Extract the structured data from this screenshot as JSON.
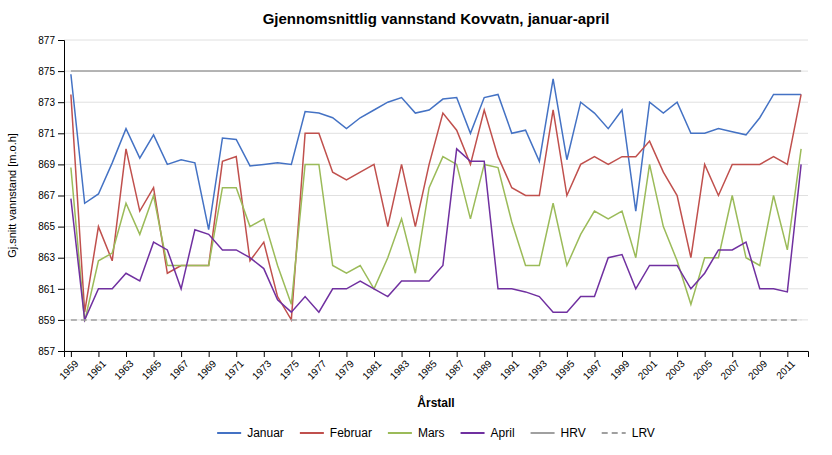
{
  "chart_data": {
    "type": "line",
    "title": "Gjennomsnittlig vannstand Kovvatn, januar-april",
    "xlabel": "Årstall",
    "ylabel": "Gj.snitt vannstand [m.o.h]",
    "x": [
      1959,
      1960,
      1961,
      1962,
      1963,
      1964,
      1965,
      1966,
      1967,
      1968,
      1969,
      1970,
      1971,
      1972,
      1973,
      1974,
      1975,
      1976,
      1977,
      1978,
      1979,
      1980,
      1981,
      1982,
      1983,
      1984,
      1985,
      1986,
      1987,
      1988,
      1989,
      1990,
      1991,
      1992,
      1993,
      1994,
      1995,
      1996,
      1997,
      1998,
      1999,
      2000,
      2001,
      2002,
      2003,
      2004,
      2005,
      2006,
      2007,
      2008,
      2009,
      2010,
      2011,
      2012
    ],
    "series": [
      {
        "name": "Januar",
        "color": "#4472C4",
        "line_style": "solid",
        "values": [
          874.8,
          866.5,
          867.1,
          869.1,
          871.3,
          869.4,
          870.9,
          869.0,
          869.3,
          869.1,
          864.8,
          870.7,
          870.6,
          868.9,
          869.0,
          869.1,
          869.0,
          872.4,
          872.3,
          872.0,
          871.3,
          872.0,
          872.5,
          873.0,
          873.3,
          872.3,
          872.5,
          873.2,
          873.3,
          871.0,
          873.3,
          873.5,
          871.0,
          871.2,
          869.2,
          874.5,
          869.3,
          873.0,
          872.3,
          871.3,
          872.5,
          866.0,
          873.0,
          872.3,
          873.0,
          871.0,
          871.0,
          871.3,
          871.1,
          870.9,
          872.0,
          873.5,
          873.5,
          873.5
        ]
      },
      {
        "name": "Februar",
        "color": "#C0504D",
        "line_style": "solid",
        "values": [
          873.5,
          859.5,
          865.0,
          862.8,
          870.0,
          866.0,
          867.5,
          862.0,
          862.5,
          862.5,
          862.5,
          869.2,
          869.5,
          862.8,
          864.0,
          860.5,
          859.0,
          871.0,
          871.0,
          868.5,
          868.0,
          868.5,
          869.0,
          865.0,
          869.0,
          865.0,
          869.0,
          872.3,
          871.2,
          869.0,
          872.5,
          869.5,
          867.5,
          867.0,
          867.0,
          872.5,
          867.0,
          869.0,
          869.5,
          869.0,
          869.5,
          869.5,
          870.5,
          868.5,
          867.0,
          863.0,
          869.0,
          867.0,
          869.0,
          869.0,
          869.0,
          869.5,
          869.0,
          873.5
        ]
      },
      {
        "name": "Mars",
        "color": "#9BBB59",
        "line_style": "solid",
        "values": [
          868.8,
          858.9,
          862.8,
          863.3,
          866.5,
          864.5,
          867.0,
          862.5,
          862.5,
          862.5,
          862.5,
          867.5,
          867.5,
          865.0,
          865.5,
          862.5,
          860.0,
          869.0,
          869.0,
          862.5,
          862.0,
          862.5,
          861.0,
          863.0,
          865.5,
          862.0,
          867.5,
          869.5,
          869.0,
          865.5,
          869.0,
          868.8,
          865.3,
          862.5,
          862.5,
          866.5,
          862.5,
          864.5,
          866.0,
          865.5,
          866.0,
          863.0,
          869.0,
          865.0,
          862.8,
          860.0,
          863.0,
          863.0,
          867.0,
          863.0,
          862.5,
          867.0,
          863.5,
          870.0
        ]
      },
      {
        "name": "April",
        "color": "#7030A0",
        "line_style": "solid",
        "values": [
          866.8,
          859.0,
          861.0,
          861.0,
          862.0,
          861.5,
          864.0,
          863.5,
          861.0,
          864.8,
          864.5,
          863.5,
          863.5,
          863.0,
          862.3,
          860.3,
          859.5,
          860.5,
          859.5,
          861.0,
          861.0,
          861.5,
          861.0,
          860.5,
          861.5,
          861.5,
          861.5,
          862.5,
          870.0,
          869.2,
          869.2,
          861.0,
          861.0,
          860.8,
          860.5,
          859.5,
          859.5,
          860.5,
          860.5,
          863.0,
          863.2,
          861.0,
          862.5,
          862.5,
          862.5,
          861.0,
          862.0,
          863.5,
          863.5,
          864.0,
          861.0,
          861.0,
          860.8,
          869.0
        ]
      },
      {
        "name": "HRV",
        "color": "#A0A0A0",
        "line_style": "solid",
        "values": [
          875,
          875,
          875,
          875,
          875,
          875,
          875,
          875,
          875,
          875,
          875,
          875,
          875,
          875,
          875,
          875,
          875,
          875,
          875,
          875,
          875,
          875,
          875,
          875,
          875,
          875,
          875,
          875,
          875,
          875,
          875,
          875,
          875,
          875,
          875,
          875,
          875,
          875,
          875,
          875,
          875,
          875,
          875,
          875,
          875,
          875,
          875,
          875,
          875,
          875,
          875,
          875,
          875,
          875
        ]
      },
      {
        "name": "LRV",
        "color": "#A0A0A0",
        "line_style": "dashed",
        "values": [
          859,
          859,
          859,
          859,
          859,
          859,
          859,
          859,
          859,
          859,
          859,
          859,
          859,
          859,
          859,
          859,
          859,
          859,
          859,
          859,
          859,
          859,
          859,
          859,
          859,
          859,
          859,
          859,
          859,
          859,
          859,
          859,
          859,
          859,
          859,
          859,
          859,
          859,
          859,
          859,
          859,
          859,
          859,
          859,
          859,
          859,
          859,
          859,
          859,
          859,
          859,
          859,
          859,
          859
        ]
      }
    ],
    "xlim": [
      1958.5,
      2012.5
    ],
    "xticks": [
      1959,
      1961,
      1963,
      1965,
      1967,
      1969,
      1971,
      1973,
      1975,
      1977,
      1979,
      1981,
      1983,
      1985,
      1987,
      1989,
      1991,
      1993,
      1995,
      1997,
      1999,
      2001,
      2003,
      2005,
      2007,
      2009,
      2011
    ],
    "ylim": [
      857,
      877
    ],
    "yticks": [
      857,
      859,
      861,
      863,
      865,
      867,
      869,
      871,
      873,
      875,
      877
    ],
    "grid": true,
    "legend": "bottom"
  }
}
